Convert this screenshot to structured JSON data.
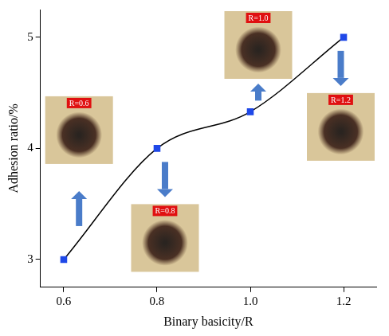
{
  "chart_data": {
    "type": "line",
    "x_label": "Binary basicity/R",
    "y_label": "Adhesion ratio/%",
    "x": [
      0.6,
      0.8,
      1.0,
      1.2
    ],
    "values": [
      3,
      4,
      4.33,
      5
    ],
    "color": "#000000",
    "colors": [
      "#1f48e8",
      "#1f48e8",
      "#1f48e8",
      "#1f48e8"
    ],
    "marker": "square",
    "xlim": [
      0.55,
      1.27
    ],
    "xticks": [
      0.6,
      0.8,
      {
        "value": 1,
        "label": "1.0"
      },
      1.2
    ],
    "ylim": [
      2.75,
      5.25
    ],
    "yticks": [
      3,
      4,
      5
    ],
    "grid": false,
    "annotations": [
      {
        "text": "R=0.6",
        "x": 0.6
      },
      {
        "text": "R=0.8",
        "x": 0.8
      },
      {
        "text": "R=1.0",
        "x": 1
      },
      {
        "text": "R=1.2",
        "x": 1.2
      }
    ]
  }
}
